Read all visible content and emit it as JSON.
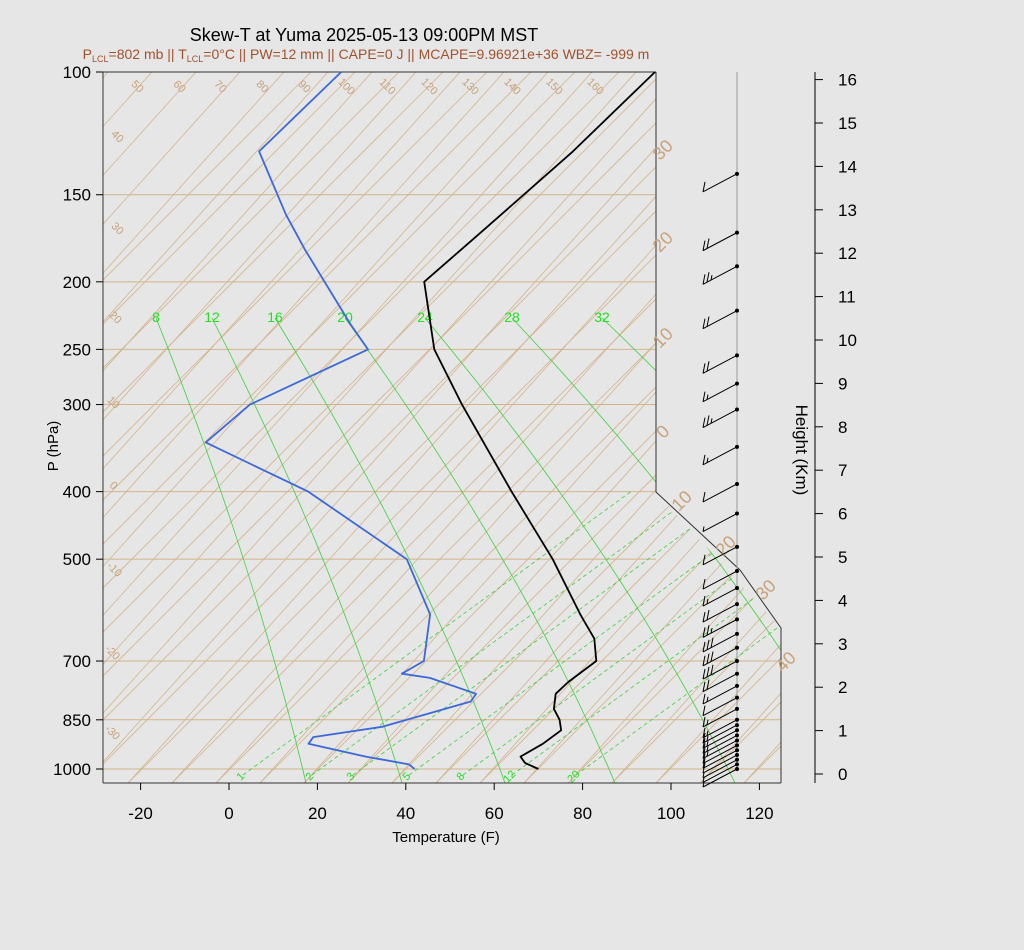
{
  "chart_data": {
    "type": "line",
    "chart_kind": "skew-t log-p sounding",
    "title": "Skew-T at Yuma 2025-05-13 09:00PM MST",
    "subtitle": {
      "p_prefix": "P",
      "p_sub": "LCL",
      "p_value": "=802 mb || ",
      "t_prefix": "T",
      "t_sub": "LCL",
      "t_value": "=0°C || PW=12 mm || CAPE=0 J || MCAPE=9.96921e+36 WBZ= -999 m"
    },
    "xlabel": "Temperature (F)",
    "ylabel": "P (hPa)",
    "y2label": "Height (Km)",
    "x_ticks": [
      "-20",
      "0",
      "20",
      "40",
      "60",
      "80",
      "100",
      "120"
    ],
    "y_ticks": [
      "100",
      "150",
      "200",
      "250",
      "300",
      "400",
      "500",
      "700",
      "850",
      "1000"
    ],
    "height_ticks": [
      "0",
      "1",
      "2",
      "3",
      "4",
      "5",
      "6",
      "7",
      "8",
      "9",
      "10",
      "11",
      "12",
      "13",
      "14",
      "15",
      "16"
    ],
    "isotherm_labels": [
      "50",
      "60",
      "70",
      "80",
      "90",
      "100",
      "110",
      "120",
      "130",
      "140",
      "150",
      "160",
      "40",
      "30",
      "20",
      "10",
      "0",
      "-10",
      "-20",
      "-30"
    ],
    "right_isotherm_labels": [
      "30",
      "20",
      "10",
      "0",
      "10",
      "20",
      "30",
      "40"
    ],
    "mixing_ratio_top_labels": [
      "8",
      "12",
      "16",
      "20",
      "24",
      "28",
      "32"
    ],
    "mixing_ratio_bottom_labels": [
      "1",
      "2",
      "3",
      "5",
      "8",
      "12",
      "20"
    ],
    "series": [
      {
        "name": "Temperature",
        "color": "#000000",
        "points": [
          {
            "p": 1000,
            "t": 70
          },
          {
            "p": 980,
            "t": 66
          },
          {
            "p": 960,
            "t": 64
          },
          {
            "p": 920,
            "t": 67
          },
          {
            "p": 880,
            "t": 69
          },
          {
            "p": 850,
            "t": 67
          },
          {
            "p": 820,
            "t": 64
          },
          {
            "p": 780,
            "t": 62
          },
          {
            "p": 750,
            "t": 63
          },
          {
            "p": 700,
            "t": 66
          },
          {
            "p": 650,
            "t": 62
          },
          {
            "p": 600,
            "t": 55
          },
          {
            "p": 500,
            "t": 40
          },
          {
            "p": 400,
            "t": 20
          },
          {
            "p": 300,
            "t": -5
          },
          {
            "p": 250,
            "t": -20
          },
          {
            "p": 200,
            "t": -33
          },
          {
            "p": 170,
            "t": -28
          },
          {
            "p": 130,
            "t": -20
          },
          {
            "p": 100,
            "t": -14
          }
        ]
      },
      {
        "name": "Dew point",
        "color": "#3d68dc",
        "points": [
          {
            "p": 1000,
            "t": 42
          },
          {
            "p": 985,
            "t": 40
          },
          {
            "p": 960,
            "t": 29
          },
          {
            "p": 920,
            "t": 14
          },
          {
            "p": 900,
            "t": 14
          },
          {
            "p": 870,
            "t": 28
          },
          {
            "p": 800,
            "t": 44
          },
          {
            "p": 780,
            "t": 44
          },
          {
            "p": 740,
            "t": 31
          },
          {
            "p": 730,
            "t": 24
          },
          {
            "p": 700,
            "t": 27
          },
          {
            "p": 600,
            "t": 21
          },
          {
            "p": 500,
            "t": 7
          },
          {
            "p": 400,
            "t": -26
          },
          {
            "p": 340,
            "t": -57
          },
          {
            "p": 300,
            "t": -53
          },
          {
            "p": 250,
            "t": -35
          },
          {
            "p": 230,
            "t": -43
          },
          {
            "p": 180,
            "t": -65
          },
          {
            "p": 160,
            "t": -75
          },
          {
            "p": 130,
            "t": -91
          },
          {
            "p": 100,
            "t": -85
          }
        ]
      }
    ],
    "wind_barbs": [
      {
        "p": 1000,
        "speed_kt": 5
      },
      {
        "p": 985,
        "speed_kt": 5
      },
      {
        "p": 970,
        "speed_kt": 5
      },
      {
        "p": 955,
        "speed_kt": 10
      },
      {
        "p": 940,
        "speed_kt": 10
      },
      {
        "p": 925,
        "speed_kt": 10
      },
      {
        "p": 910,
        "speed_kt": 15
      },
      {
        "p": 895,
        "speed_kt": 15
      },
      {
        "p": 880,
        "speed_kt": 15
      },
      {
        "p": 865,
        "speed_kt": 15
      },
      {
        "p": 850,
        "speed_kt": 15
      },
      {
        "p": 820,
        "speed_kt": 15
      },
      {
        "p": 790,
        "speed_kt": 10
      },
      {
        "p": 760,
        "speed_kt": 15
      },
      {
        "p": 730,
        "speed_kt": 20
      },
      {
        "p": 700,
        "speed_kt": 30
      },
      {
        "p": 670,
        "speed_kt": 30
      },
      {
        "p": 640,
        "speed_kt": 30
      },
      {
        "p": 610,
        "speed_kt": 25
      },
      {
        "p": 580,
        "speed_kt": 20
      },
      {
        "p": 550,
        "speed_kt": 15
      },
      {
        "p": 520,
        "speed_kt": 10
      },
      {
        "p": 480,
        "speed_kt": 10
      },
      {
        "p": 430,
        "speed_kt": 5
      },
      {
        "p": 390,
        "speed_kt": 10
      },
      {
        "p": 345,
        "speed_kt": 15
      },
      {
        "p": 305,
        "speed_kt": 25
      },
      {
        "p": 280,
        "speed_kt": 15
      },
      {
        "p": 255,
        "speed_kt": 20
      },
      {
        "p": 220,
        "speed_kt": 20
      },
      {
        "p": 190,
        "speed_kt": 25
      },
      {
        "p": 170,
        "speed_kt": 20
      },
      {
        "p": 140,
        "speed_kt": 10
      }
    ]
  }
}
